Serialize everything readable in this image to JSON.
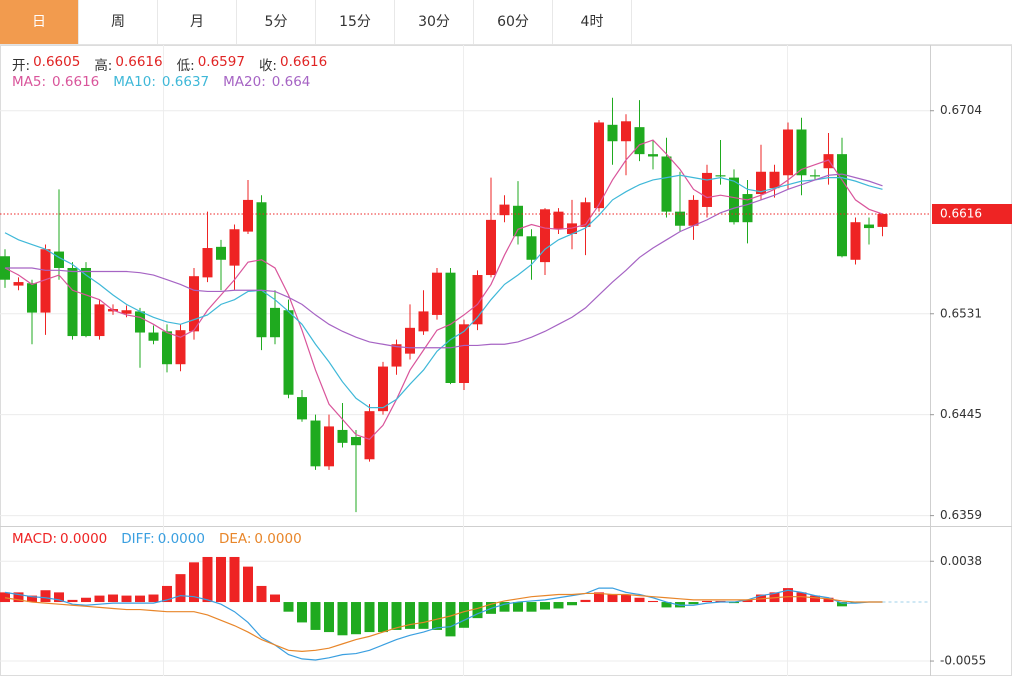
{
  "tabs": [
    "日",
    "周",
    "月",
    "5分",
    "15分",
    "30分",
    "60分",
    "4时"
  ],
  "active_tab": 0,
  "chart_data": [
    {
      "type": "candlestick",
      "ylim": [
        0.6351,
        0.676
      ],
      "yticks": [
        0.6359,
        0.6445,
        0.6531,
        0.6704
      ],
      "grid": true,
      "last_price": 0.6616,
      "up_color": "#ee2424",
      "down_color": "#1faa1f",
      "last_color": "#ee2424",
      "info": [
        {
          "label": "开:",
          "value": 0.6605
        },
        {
          "label": "高:",
          "value": 0.6616
        },
        {
          "label": "低:",
          "value": 0.6597
        },
        {
          "label": "收:",
          "value": 0.6616
        }
      ],
      "open": [
        0.658,
        0.6555,
        0.6557,
        0.6532,
        0.6584,
        0.657,
        0.657,
        0.6512,
        0.6533,
        0.6531,
        0.6533,
        0.6515,
        0.6516,
        0.6488,
        0.6516,
        0.6562,
        0.6588,
        0.6572,
        0.6601,
        0.6626,
        0.6536,
        0.6534,
        0.646,
        0.644,
        0.6401,
        0.6432,
        0.6426,
        0.6407,
        0.6448,
        0.6486,
        0.6497,
        0.6516,
        0.653,
        0.6566,
        0.6472,
        0.6522,
        0.6564,
        0.6615,
        0.6623,
        0.6597,
        0.6575,
        0.6603,
        0.6599,
        0.6605,
        0.6621,
        0.6692,
        0.6678,
        0.669,
        0.6667,
        0.6665,
        0.6618,
        0.6606,
        0.6622,
        0.6649,
        0.6647,
        0.6633,
        0.6633,
        0.6638,
        0.6649,
        0.6688,
        0.6649,
        0.6655,
        0.6667,
        0.6577,
        0.6607,
        0.6605
      ],
      "high": [
        0.6586,
        0.6562,
        0.656,
        0.659,
        0.6637,
        0.6575,
        0.6575,
        0.6543,
        0.6539,
        0.6538,
        0.6536,
        0.6521,
        0.6522,
        0.6522,
        0.657,
        0.6618,
        0.6594,
        0.6607,
        0.6645,
        0.6632,
        0.6551,
        0.6543,
        0.6466,
        0.6445,
        0.6445,
        0.6455,
        0.6432,
        0.6454,
        0.649,
        0.6509,
        0.6539,
        0.6551,
        0.657,
        0.657,
        0.6526,
        0.6568,
        0.6647,
        0.6632,
        0.6644,
        0.6603,
        0.6621,
        0.6621,
        0.6628,
        0.663,
        0.6696,
        0.6715,
        0.6701,
        0.6713,
        0.6679,
        0.6681,
        0.6652,
        0.6632,
        0.6658,
        0.6679,
        0.6654,
        0.6645,
        0.6675,
        0.6658,
        0.6694,
        0.6698,
        0.6654,
        0.6685,
        0.6681,
        0.6613,
        0.6613,
        0.6616
      ],
      "low": [
        0.6553,
        0.6551,
        0.6505,
        0.6513,
        0.656,
        0.6509,
        0.6511,
        0.6509,
        0.653,
        0.6528,
        0.6485,
        0.6505,
        0.6481,
        0.6482,
        0.6509,
        0.6558,
        0.6551,
        0.6551,
        0.6599,
        0.65,
        0.6505,
        0.6459,
        0.6439,
        0.6398,
        0.6398,
        0.6417,
        0.6362,
        0.6405,
        0.6445,
        0.6479,
        0.6492,
        0.6513,
        0.6526,
        0.6471,
        0.6466,
        0.6517,
        0.6562,
        0.6609,
        0.659,
        0.656,
        0.6564,
        0.6599,
        0.6586,
        0.6581,
        0.6618,
        0.6658,
        0.6649,
        0.6661,
        0.6654,
        0.6613,
        0.6601,
        0.6594,
        0.6613,
        0.6641,
        0.6607,
        0.6591,
        0.6628,
        0.663,
        0.6637,
        0.6632,
        0.6645,
        0.6641,
        0.6579,
        0.6573,
        0.659,
        0.6597
      ],
      "close": [
        0.656,
        0.6558,
        0.6532,
        0.6586,
        0.657,
        0.6512,
        0.6512,
        0.6539,
        0.6535,
        0.6534,
        0.6515,
        0.6508,
        0.6488,
        0.6517,
        0.6563,
        0.6587,
        0.6577,
        0.6603,
        0.6628,
        0.6511,
        0.6511,
        0.6462,
        0.6441,
        0.6401,
        0.6435,
        0.6421,
        0.6419,
        0.6448,
        0.6486,
        0.6505,
        0.6519,
        0.6533,
        0.6566,
        0.6472,
        0.6522,
        0.6564,
        0.6611,
        0.6624,
        0.6597,
        0.6577,
        0.662,
        0.6618,
        0.6608,
        0.6626,
        0.6694,
        0.6678,
        0.6695,
        0.6667,
        0.6665,
        0.6618,
        0.6606,
        0.6628,
        0.6651,
        0.6648,
        0.6609,
        0.6609,
        0.6652,
        0.6652,
        0.6688,
        0.6649,
        0.6648,
        0.6667,
        0.658,
        0.6609,
        0.6604,
        0.6616
      ],
      "series": [
        {
          "name": "MA5:",
          "current": 0.6616,
          "color": "#d9559b",
          "values": [
            0.657,
            0.6564,
            0.6556,
            0.656,
            0.6564,
            0.6551,
            0.6547,
            0.6543,
            0.6534,
            0.653,
            0.6528,
            0.6522,
            0.6515,
            0.6511,
            0.6517,
            0.6534,
            0.6547,
            0.656,
            0.6575,
            0.6577,
            0.657,
            0.6547,
            0.6517,
            0.6483,
            0.6454,
            0.6441,
            0.6428,
            0.6424,
            0.6436,
            0.6458,
            0.6483,
            0.65,
            0.6517,
            0.6522,
            0.653,
            0.6539,
            0.6556,
            0.6581,
            0.6603,
            0.6607,
            0.6604,
            0.6603,
            0.6604,
            0.6607,
            0.6624,
            0.6645,
            0.6662,
            0.6675,
            0.6679,
            0.6667,
            0.6654,
            0.6637,
            0.663,
            0.6632,
            0.663,
            0.6628,
            0.6632,
            0.6637,
            0.6645,
            0.6654,
            0.6658,
            0.6662,
            0.6645,
            0.6628,
            0.662,
            0.6616
          ]
        },
        {
          "name": "MA10:",
          "current": 0.6637,
          "color": "#3fb8d8",
          "values": [
            0.66,
            0.6594,
            0.659,
            0.6586,
            0.6579,
            0.6573,
            0.6564,
            0.6556,
            0.6547,
            0.6539,
            0.6533,
            0.6528,
            0.6524,
            0.6522,
            0.6526,
            0.653,
            0.6539,
            0.6543,
            0.655,
            0.6551,
            0.6543,
            0.6533,
            0.6522,
            0.6505,
            0.649,
            0.6473,
            0.6459,
            0.6451,
            0.6451,
            0.6458,
            0.6471,
            0.6483,
            0.6499,
            0.6509,
            0.6516,
            0.6528,
            0.6543,
            0.6556,
            0.6564,
            0.6573,
            0.6586,
            0.6594,
            0.6599,
            0.6604,
            0.6615,
            0.6628,
            0.6635,
            0.6641,
            0.6645,
            0.6647,
            0.6649,
            0.6647,
            0.6645,
            0.6647,
            0.6644,
            0.6637,
            0.6635,
            0.6638,
            0.6641,
            0.6644,
            0.6645,
            0.6647,
            0.6647,
            0.6644,
            0.664,
            0.6637
          ]
        },
        {
          "name": "MA20:",
          "current": 0.664,
          "color": "#a664c4",
          "values": [
            0.657,
            0.657,
            0.657,
            0.6568,
            0.6568,
            0.6567,
            0.6567,
            0.6567,
            0.6567,
            0.6567,
            0.6566,
            0.6564,
            0.656,
            0.6556,
            0.6551,
            0.655,
            0.655,
            0.6551,
            0.6551,
            0.6551,
            0.655,
            0.6545,
            0.6539,
            0.653,
            0.6522,
            0.6516,
            0.6511,
            0.6507,
            0.6505,
            0.6503,
            0.6502,
            0.6502,
            0.6502,
            0.6502,
            0.6504,
            0.6504,
            0.6505,
            0.6505,
            0.6507,
            0.6511,
            0.6516,
            0.6522,
            0.6528,
            0.6536,
            0.6547,
            0.6558,
            0.6568,
            0.6579,
            0.6587,
            0.6594,
            0.6601,
            0.6606,
            0.6611,
            0.6617,
            0.6621,
            0.6624,
            0.6628,
            0.6632,
            0.6637,
            0.6641,
            0.6645,
            0.6649,
            0.665,
            0.6647,
            0.6644,
            0.664
          ]
        }
      ]
    },
    {
      "type": "macd",
      "ylim": [
        -0.0068,
        0.0069
      ],
      "yticks": [
        -0.0055,
        0.0038
      ],
      "up_color": "#ee2424",
      "down_color": "#1faa1f",
      "histogram": {
        "name": "MACD:",
        "current": "0.0000",
        "color": "#ee2424",
        "values": [
          0.0009,
          0.0009,
          0.0006,
          0.0011,
          0.0009,
          0.0002,
          0.0004,
          0.0006,
          0.0007,
          0.0006,
          0.0006,
          0.0007,
          0.0015,
          0.0026,
          0.0037,
          0.0042,
          0.0042,
          0.0042,
          0.0033,
          0.0015,
          0.0007,
          -0.0009,
          -0.0019,
          -0.0026,
          -0.0028,
          -0.0031,
          -0.003,
          -0.0028,
          -0.0028,
          -0.0026,
          -0.0025,
          -0.0025,
          -0.0026,
          -0.0032,
          -0.0024,
          -0.0015,
          -0.0011,
          -0.0009,
          -0.0009,
          -0.0009,
          -0.0007,
          -0.0006,
          -0.0003,
          0.0002,
          0.0009,
          0.0007,
          0.0007,
          0.0004,
          0.0001,
          -0.0005,
          -0.0005,
          -0.0002,
          0.0001,
          0.0001,
          -0.0001,
          0.0002,
          0.0007,
          0.0009,
          0.0013,
          0.0009,
          0.0006,
          0.0004,
          -0.0004,
          -0.0001,
          0,
          0
        ]
      },
      "series": [
        {
          "name": "DIFF:",
          "current": "0.0000",
          "color": "#3a9fe0",
          "values": [
            0.0009,
            0.0007,
            0.0005,
            0.0004,
            0.0002,
            -0.0002,
            -0.0003,
            -0.0002,
            -0.0001,
            -0.0001,
            -0.0001,
            -0.0001,
            0.0002,
            0.0006,
            0.0005,
            0.0002,
            -0.0002,
            -0.0009,
            -0.0019,
            -0.0033,
            -0.004,
            -0.0049,
            -0.0053,
            -0.0054,
            -0.0052,
            -0.0049,
            -0.0048,
            -0.0045,
            -0.004,
            -0.0035,
            -0.0031,
            -0.0028,
            -0.0024,
            -0.0023,
            -0.0017,
            -0.0011,
            -0.0006,
            -0.0002,
            0,
            0.0001,
            0.0002,
            0.0004,
            0.0006,
            0.0008,
            0.0013,
            0.0013,
            0.0009,
            0.0007,
            0.0004,
            0,
            -0.0003,
            -0.0003,
            -0.0001,
            0,
            0,
            0.0002,
            0.0006,
            0.0008,
            0.0011,
            0.0009,
            0.0006,
            0.0004,
            -0.0001,
            -0.0001,
            0,
            0
          ]
        },
        {
          "name": "DEA:",
          "current": "0.0000",
          "color": "#e8862a",
          "values": [
            0.0004,
            0.0002,
            0,
            -0.0001,
            -0.0002,
            -0.0003,
            -0.0004,
            -0.0005,
            -0.0006,
            -0.0007,
            -0.0007,
            -0.0008,
            -0.0009,
            -0.0009,
            -0.0009,
            -0.0012,
            -0.0017,
            -0.0022,
            -0.0028,
            -0.0035,
            -0.004,
            -0.0045,
            -0.0046,
            -0.0045,
            -0.0043,
            -0.0039,
            -0.0035,
            -0.0032,
            -0.0028,
            -0.0024,
            -0.0021,
            -0.0019,
            -0.0016,
            -0.0013,
            -0.0009,
            -0.0006,
            -0.0002,
            0.0001,
            0.0003,
            0.0005,
            0.0006,
            0.0007,
            0.0007,
            0.0008,
            0.0008,
            0.0007,
            0.0007,
            0.0006,
            0.0005,
            0.0004,
            0.0003,
            0.0002,
            0.0002,
            0.0002,
            0.0002,
            0.0002,
            0.0003,
            0.0004,
            0.0005,
            0.0005,
            0.0004,
            0.0003,
            0.0001,
            0,
            0,
            0
          ]
        }
      ]
    }
  ]
}
